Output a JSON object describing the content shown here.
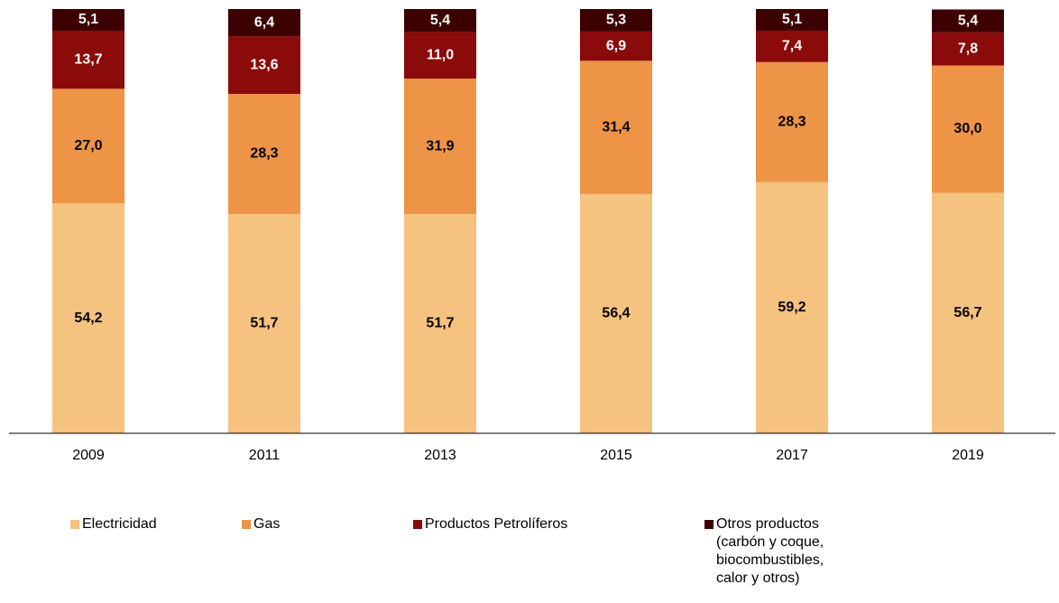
{
  "chart_data": {
    "type": "stacked_bar",
    "categories": [
      "2009",
      "2011",
      "2013",
      "2015",
      "2017",
      "2019"
    ],
    "ylim": [
      0,
      100
    ],
    "legend": "bottom",
    "series": [
      {
        "name": "Electricidad",
        "color": "#F5C27F",
        "label_color": "#000000",
        "values": [
          54.2,
          51.7,
          51.7,
          56.4,
          59.2,
          56.7
        ],
        "value_labels": [
          "54,2",
          "51,7",
          "51,7",
          "56,4",
          "59,2",
          "56,7"
        ]
      },
      {
        "name": "Gas",
        "color": "#ED9447",
        "label_color": "#000000",
        "values": [
          27.0,
          28.3,
          31.9,
          31.4,
          28.3,
          30.0
        ],
        "value_labels": [
          "27,0",
          "28,3",
          "31,9",
          "31,4",
          "28,3",
          "30,0"
        ]
      },
      {
        "name": "Productos Petrolíferos",
        "color": "#8B0A0A",
        "label_color": "#ffffff",
        "values": [
          13.7,
          13.6,
          11.0,
          6.9,
          7.4,
          7.8
        ],
        "value_labels": [
          "13,7",
          "13,6",
          "11,0",
          "6,9",
          "7,4",
          "7,8"
        ]
      },
      {
        "name": "Otros productos (carbón y coque, biocombustibles, calor y otros)",
        "color": "#3D0000",
        "label_color": "#ffffff",
        "values": [
          5.1,
          6.4,
          5.4,
          5.3,
          5.1,
          5.4
        ],
        "value_labels": [
          "5,1",
          "6,4",
          "5,4",
          "5,3",
          "5,1",
          "5,4"
        ]
      }
    ]
  }
}
